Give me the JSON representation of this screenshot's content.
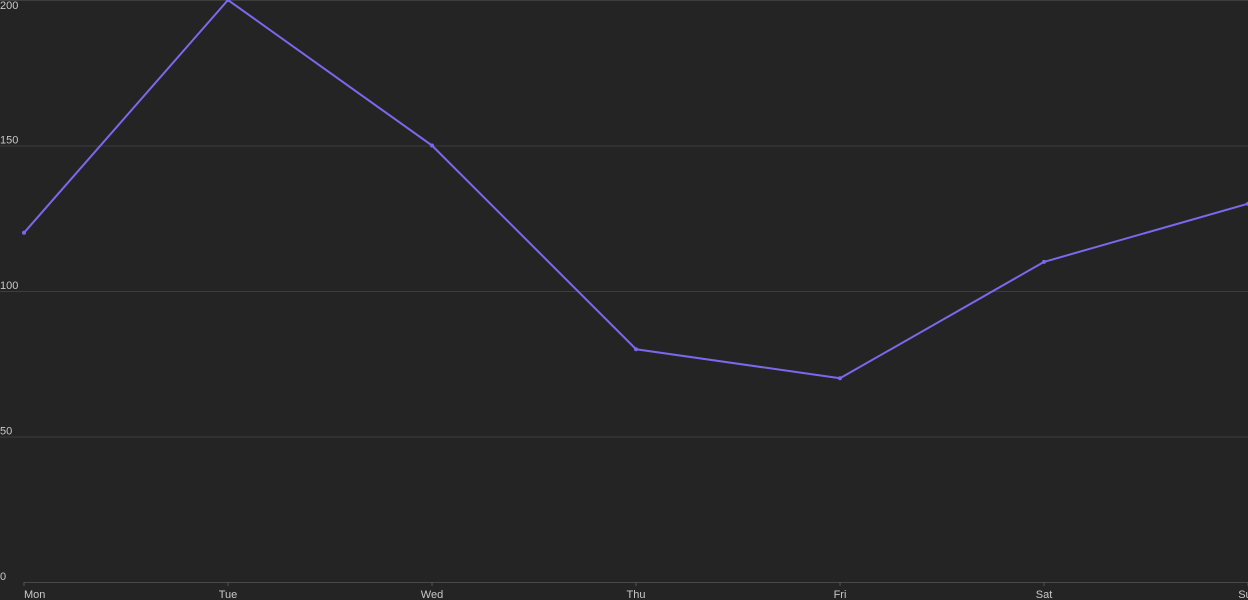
{
  "chart_data": {
    "type": "line",
    "title": "",
    "xlabel": "",
    "ylabel": "",
    "categories": [
      "Mon",
      "Tue",
      "Wed",
      "Thu",
      "Fri",
      "Sat",
      "Sun"
    ],
    "series": [
      {
        "values": [
          120,
          200,
          150,
          80,
          70,
          110,
          130
        ]
      }
    ],
    "ylim": [
      0,
      200
    ],
    "yticks": [
      0,
      50,
      100,
      150,
      200
    ],
    "grid": true,
    "legend": "none",
    "colors": {
      "background": "#242424",
      "line": "#7b68ee",
      "grid": "#3d3d3d",
      "text": "#c8c8c8"
    }
  }
}
